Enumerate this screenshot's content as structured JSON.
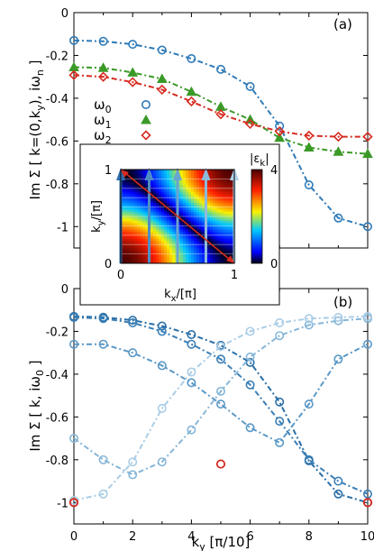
{
  "chart_data": [
    {
      "type": "line",
      "panel_label": "(a)",
      "ylabel_parts": {
        "pre": "Im Σ [ k=(0,k",
        "sub1": "y",
        "mid": "), iω",
        "sub2": "n",
        "post": " ]"
      },
      "x": [
        0,
        1,
        2,
        3,
        4,
        5,
        6,
        7,
        8,
        9,
        10
      ],
      "xlim": [
        0,
        10
      ],
      "ylim": [
        -1.1,
        0
      ],
      "yticks": [
        "0",
        "-0.2",
        "-0.4",
        "-0.6",
        "-0.8",
        "-1"
      ],
      "series": [
        {
          "name": "ω",
          "sub": "0",
          "color": "#2f7bb8",
          "marker": "circle",
          "values": [
            -0.13,
            -0.134,
            -0.148,
            -0.175,
            -0.215,
            -0.265,
            -0.345,
            -0.53,
            -0.805,
            -0.96,
            -1.0
          ]
        },
        {
          "name": "ω",
          "sub": "1",
          "color": "#3a9a27",
          "marker": "triangle",
          "values": [
            -0.255,
            -0.258,
            -0.28,
            -0.31,
            -0.37,
            -0.44,
            -0.5,
            -0.585,
            -0.63,
            -0.65,
            -0.66
          ]
        },
        {
          "name": "ω",
          "sub": "2",
          "color": "#d62b20",
          "marker": "diamond",
          "values": [
            -0.292,
            -0.3,
            -0.325,
            -0.36,
            -0.415,
            -0.475,
            -0.52,
            -0.555,
            -0.575,
            -0.58,
            -0.58
          ]
        }
      ]
    },
    {
      "type": "heatmap",
      "ylabel": "k_y/[π]",
      "xlabel": "k_x/[π]",
      "y_tick_top": "1",
      "y_tick_bottom": "0",
      "x_tick_left": "0",
      "x_tick_right": "1",
      "colorbar_label": "|ε_k|",
      "colorbar_max": "4",
      "colorbar_min": "0",
      "arrow_x": [
        0,
        0.25,
        0.5,
        0.75,
        1.0
      ],
      "diagonal_from": [
        0,
        1
      ],
      "diagonal_to": [
        1,
        0
      ]
    },
    {
      "type": "line",
      "panel_label": "(b)",
      "ylabel_parts": {
        "pre": "Im Σ [ k, iω",
        "sub1": "0",
        "post": " ]"
      },
      "xlabel_parts": {
        "pre": "k",
        "sub": "y",
        "post": " [π/10]"
      },
      "x": [
        0,
        1,
        2,
        3,
        4,
        5,
        6,
        7,
        8,
        9,
        10
      ],
      "xlim": [
        0,
        10
      ],
      "ylim": [
        -1.1,
        0
      ],
      "xticks": [
        "0",
        "2",
        "4",
        "6",
        "8",
        "10"
      ],
      "yticks": [
        "0",
        "-0.2",
        "-0.4",
        "-0.6",
        "-0.8",
        "-1"
      ],
      "series": [
        {
          "color": "#2a6fa8",
          "values": [
            -0.13,
            -0.134,
            -0.148,
            -0.175,
            -0.215,
            -0.265,
            -0.345,
            -0.53,
            -0.805,
            -0.96,
            -1.0
          ]
        },
        {
          "color": "#3b7fb6",
          "values": [
            -0.135,
            -0.14,
            -0.16,
            -0.2,
            -0.26,
            -0.33,
            -0.45,
            -0.62,
            -0.8,
            -0.9,
            -0.96
          ]
        },
        {
          "color": "#5a98c6",
          "values": [
            -0.26,
            -0.26,
            -0.3,
            -0.36,
            -0.44,
            -0.54,
            -0.65,
            -0.72,
            -0.54,
            -0.33,
            -0.26
          ]
        },
        {
          "color": "#86b6d8",
          "values": [
            -0.7,
            -0.8,
            -0.87,
            -0.81,
            -0.66,
            -0.48,
            -0.32,
            -0.22,
            -0.17,
            -0.15,
            -0.14
          ]
        },
        {
          "color": "#aacde6",
          "values": [
            -0.99,
            -0.96,
            -0.81,
            -0.56,
            -0.39,
            -0.27,
            -0.2,
            -0.16,
            -0.14,
            -0.135,
            -0.13
          ]
        }
      ],
      "highlights": [
        {
          "x": 0,
          "y": -1.0,
          "color": "#d62b20"
        },
        {
          "x": 5,
          "y": -0.82,
          "color": "#d62b20"
        },
        {
          "x": 10,
          "y": -1.0,
          "color": "#d62b20"
        }
      ]
    }
  ]
}
